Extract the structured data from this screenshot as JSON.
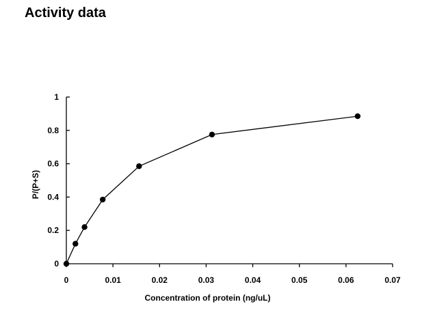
{
  "page": {
    "title": "Activity data"
  },
  "chart_data": {
    "type": "line",
    "title": "Activity data",
    "xlabel": "Concentration of protein (ng/uL)",
    "ylabel": "P/(P+S)",
    "xlim": [
      0,
      0.07
    ],
    "ylim": [
      0,
      1
    ],
    "xticks": [
      0,
      0.01,
      0.02,
      0.03,
      0.04,
      0.05,
      0.06,
      0.07
    ],
    "yticks": [
      0,
      0.2,
      0.4,
      0.6,
      0.8,
      1
    ],
    "xtick_labels": [
      "0",
      "0.01",
      "0.02",
      "0.03",
      "0.04",
      "0.05",
      "0.06",
      "0.07"
    ],
    "ytick_labels": [
      "0",
      "0.2",
      "0.4",
      "0.6",
      "0.8",
      "1"
    ],
    "grid": false,
    "legend": "none",
    "series": [
      {
        "x": [
          0,
          0.00195,
          0.0039,
          0.0078,
          0.0156,
          0.03125,
          0.0625
        ],
        "y": [
          0,
          0.12,
          0.22,
          0.385,
          0.585,
          0.775,
          0.885
        ],
        "marker": "circle",
        "color": "#000000"
      }
    ]
  }
}
